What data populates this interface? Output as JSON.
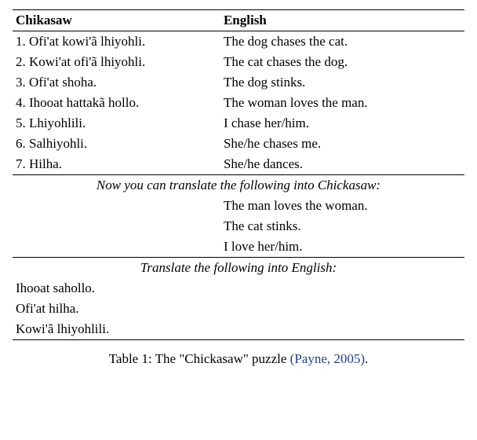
{
  "headers": {
    "left": "Chikasaw",
    "right": "English"
  },
  "examples": [
    {
      "n": "1.",
      "src": "Ofi'at kowi'ã lhiyohli.",
      "tgt": "The dog chases the cat."
    },
    {
      "n": "2.",
      "src": "Kowi'at ofi'ã lhiyohli.",
      "tgt": "The cat chases the dog."
    },
    {
      "n": "3.",
      "src": "Ofi'at shoha.",
      "tgt": "The dog stinks."
    },
    {
      "n": "4.",
      "src": "Ihooat hattakã hollo.",
      "tgt": "The woman loves the man."
    },
    {
      "n": "5.",
      "src": "Lhiyohlili.",
      "tgt": "I chase her/him."
    },
    {
      "n": "6.",
      "src": "Salhiyohli.",
      "tgt": "She/he chases me."
    },
    {
      "n": "7.",
      "src": "Hilha.",
      "tgt": "She/he dances."
    }
  ],
  "task1": {
    "heading": "Now you can translate the following into Chickasaw:",
    "items": [
      "The man loves the woman.",
      "The cat stinks.",
      "I love her/him."
    ]
  },
  "task2": {
    "heading": "Translate the following into English:",
    "items": [
      "Ihooat sahollo.",
      "Ofi'at hilha.",
      "Kowi'ã lhiyohlili."
    ]
  },
  "caption": {
    "prefix": "Table 1: The \"Chickasaw\" puzzle ",
    "cite_text": "(Payne, 2005)",
    "suffix": "."
  },
  "colors": {
    "text": "#000000",
    "background": "#ffffff",
    "link": "#1a3f8b",
    "rule": "#000000"
  },
  "typography": {
    "font_family": "Times New Roman",
    "font_size_pt": 12,
    "header_weight": "bold",
    "section_style": "italic"
  }
}
